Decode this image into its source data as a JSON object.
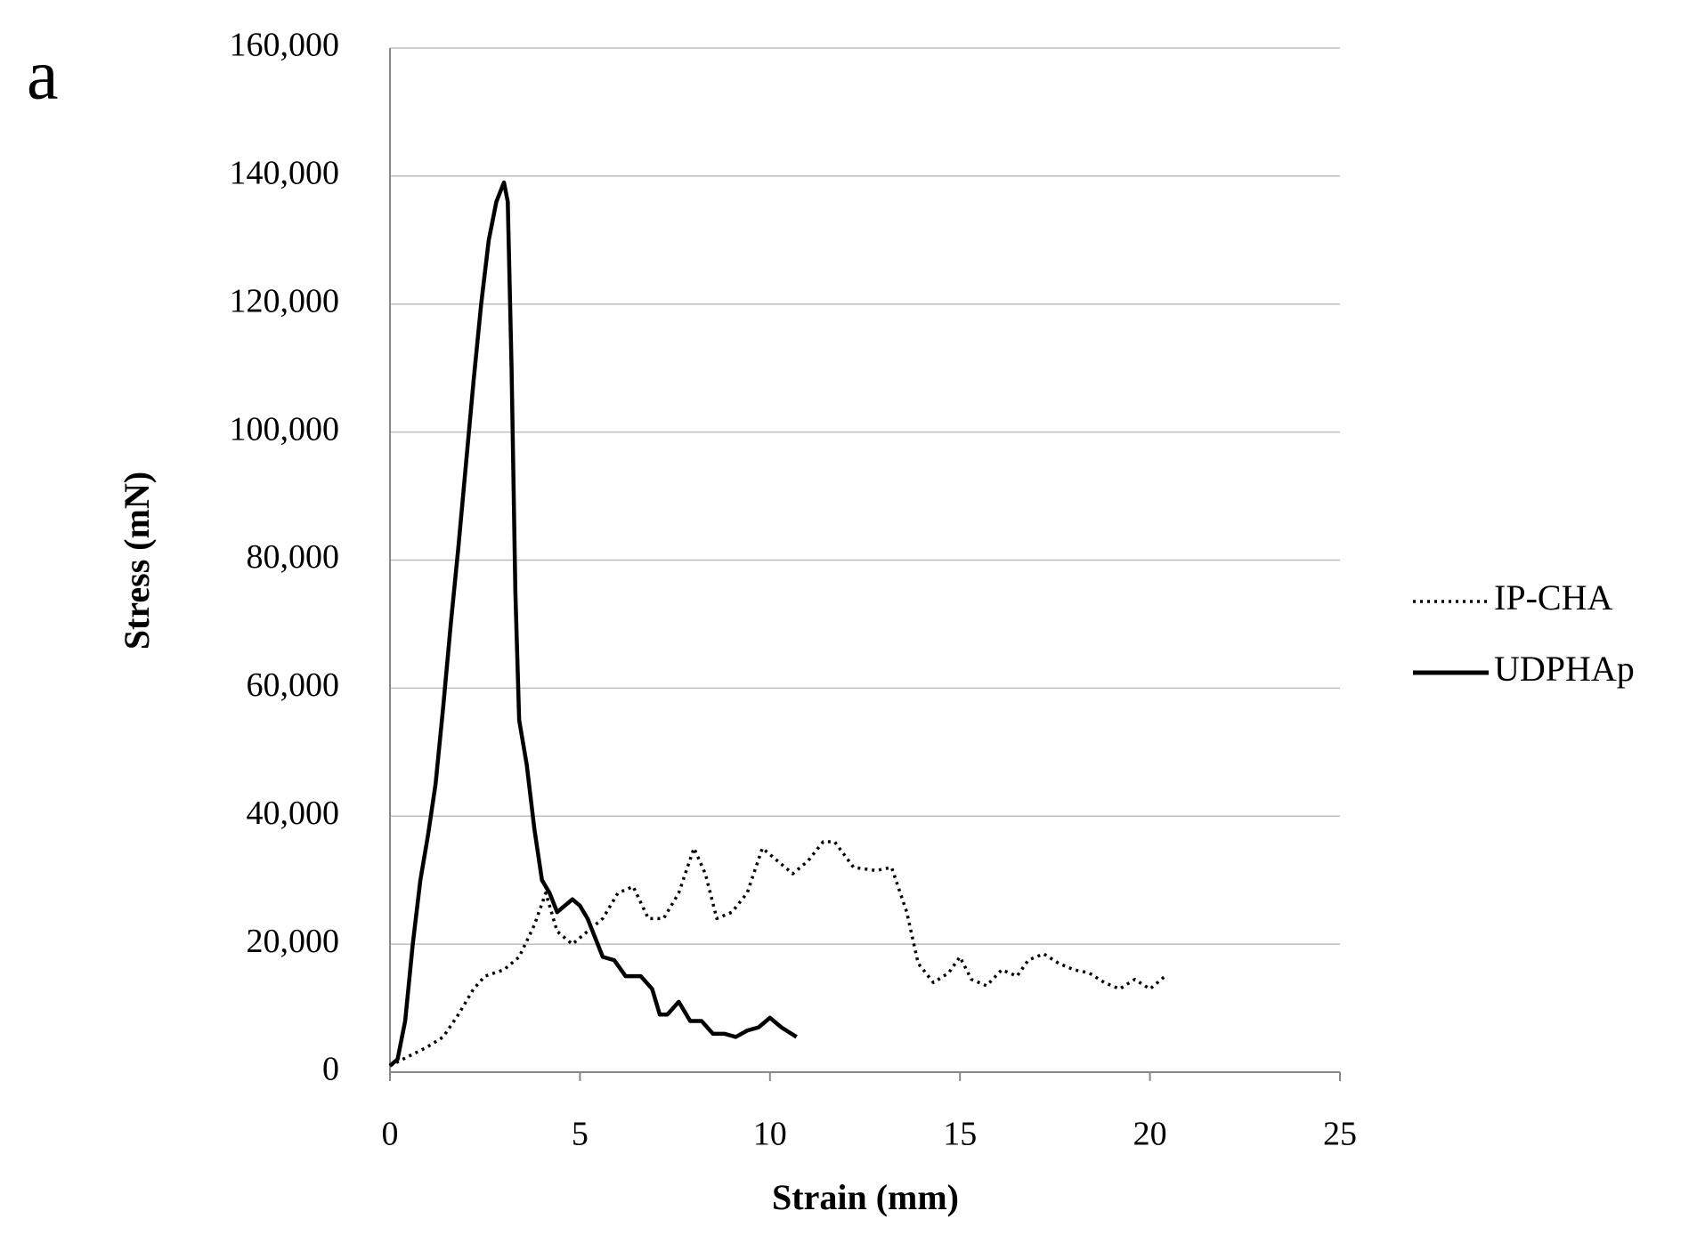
{
  "chart_data": {
    "type": "line",
    "panel_label": "a",
    "x_label": "Strain (mm)",
    "y_label": "Stress (mN)",
    "xlim": [
      0,
      25
    ],
    "xticks": [
      0,
      5,
      10,
      15,
      20,
      25
    ],
    "ylim": [
      0,
      160000
    ],
    "yticks": [
      0,
      {
        "value": 20000,
        "label": "20,000"
      },
      {
        "value": 40000,
        "label": "40,000"
      },
      {
        "value": 60000,
        "label": "60,000"
      },
      {
        "value": 80000,
        "label": "80,000"
      },
      {
        "value": 100000,
        "label": "100,000"
      },
      {
        "value": 120000,
        "label": "120,000"
      },
      {
        "value": 140000,
        "label": "140,000"
      },
      {
        "value": 160000,
        "label": "160,000"
      }
    ],
    "grid": true,
    "legend": "right",
    "series": [
      {
        "name": "IP-CHA",
        "color": "#000000",
        "line_style": "dotted",
        "x": [
          0,
          0.5,
          1.0,
          1.4,
          1.8,
          2.2,
          2.5,
          3.0,
          3.4,
          3.8,
          4.1,
          4.4,
          4.8,
          5.2,
          5.6,
          6.0,
          6.4,
          6.8,
          7.2,
          7.6,
          8.0,
          8.3,
          8.6,
          9.0,
          9.4,
          9.8,
          10.2,
          10.6,
          11.0,
          11.4,
          11.7,
          12.2,
          12.8,
          13.2,
          13.6,
          13.9,
          14.3,
          14.7,
          15.0,
          15.3,
          15.7,
          16.1,
          16.5,
          16.8,
          17.2,
          17.6,
          18.0,
          18.4,
          18.8,
          19.2,
          19.6,
          20.0,
          20.4
        ],
        "values": [
          1000,
          2500,
          4000,
          5500,
          9000,
          13000,
          15000,
          16000,
          18000,
          23000,
          28000,
          22000,
          20000,
          22000,
          24000,
          28000,
          29000,
          24000,
          24000,
          28000,
          35000,
          31000,
          24000,
          25000,
          28000,
          35000,
          33000,
          31000,
          33000,
          36000,
          36000,
          32000,
          31500,
          32000,
          25000,
          17000,
          14000,
          15500,
          18000,
          14500,
          13500,
          16000,
          15000,
          17500,
          18500,
          17000,
          16000,
          15500,
          14000,
          13000,
          14500,
          13000,
          15000
        ]
      },
      {
        "name": "UDPHAp",
        "color": "#000000",
        "line_style": "solid",
        "x": [
          0,
          0.2,
          0.4,
          0.6,
          0.8,
          1.0,
          1.2,
          1.4,
          1.6,
          1.8,
          2.0,
          2.2,
          2.4,
          2.6,
          2.8,
          3.0,
          3.1,
          3.2,
          3.3,
          3.4,
          3.6,
          3.8,
          4.0,
          4.2,
          4.4,
          4.6,
          4.8,
          5.0,
          5.2,
          5.4,
          5.6,
          5.9,
          6.2,
          6.6,
          6.9,
          7.1,
          7.3,
          7.6,
          7.9,
          8.2,
          8.5,
          8.8,
          9.1,
          9.4,
          9.7,
          10.0,
          10.3,
          10.7
        ],
        "values": [
          1000,
          2000,
          8000,
          20000,
          30000,
          37000,
          45000,
          57000,
          70000,
          82000,
          95000,
          108000,
          120000,
          130000,
          136000,
          139000,
          136000,
          110000,
          75000,
          55000,
          48000,
          38000,
          30000,
          28000,
          25000,
          26000,
          27000,
          26000,
          24000,
          21000,
          18000,
          17500,
          15000,
          15000,
          13000,
          9000,
          9000,
          11000,
          8000,
          8000,
          6000,
          6000,
          5500,
          6500,
          7000,
          8500,
          7000,
          5500
        ]
      }
    ]
  }
}
